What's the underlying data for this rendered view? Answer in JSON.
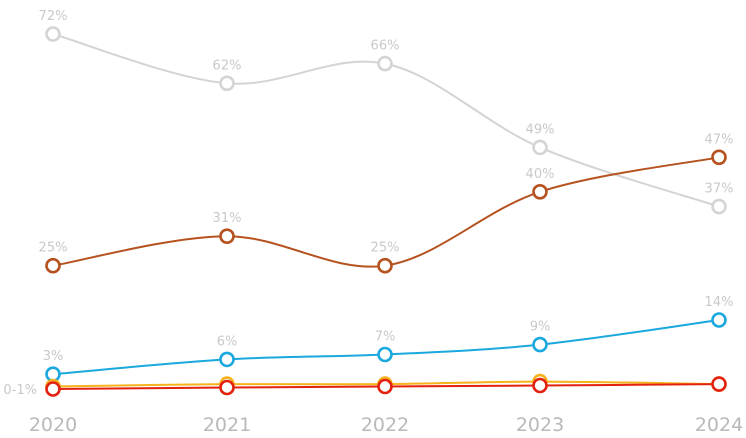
{
  "chart_data": {
    "type": "line",
    "x": [
      "2020",
      "2021",
      "2022",
      "2023",
      "2024"
    ],
    "ylim": [
      0,
      72
    ],
    "grid": false,
    "legend": "none",
    "series": [
      {
        "color": "#d4d4d4",
        "values": [
          72,
          62,
          66,
          49,
          37
        ],
        "labels": [
          "72%",
          "62%",
          "66%",
          "49%",
          "37%"
        ]
      },
      {
        "color": "#b5521f",
        "values": [
          25,
          31,
          25,
          40,
          47
        ],
        "labels": [
          "25%",
          "31%",
          "25%",
          "40%",
          "47%"
        ]
      },
      {
        "color": "#1aa8df",
        "values": [
          3,
          6,
          7,
          9,
          14
        ],
        "labels": [
          "3%",
          "6%",
          "7%",
          "9%",
          "14%"
        ]
      },
      {
        "color": "#f5b21b",
        "values": [
          0.5,
          1,
          1,
          1.5,
          1
        ],
        "labels": [
          "",
          "",
          "",
          "",
          ""
        ]
      },
      {
        "color": "#e3210f",
        "values": [
          0,
          0.3,
          0.5,
          0.7,
          1
        ],
        "labels": [
          "0-1%",
          "",
          "",
          "",
          ""
        ]
      }
    ]
  }
}
